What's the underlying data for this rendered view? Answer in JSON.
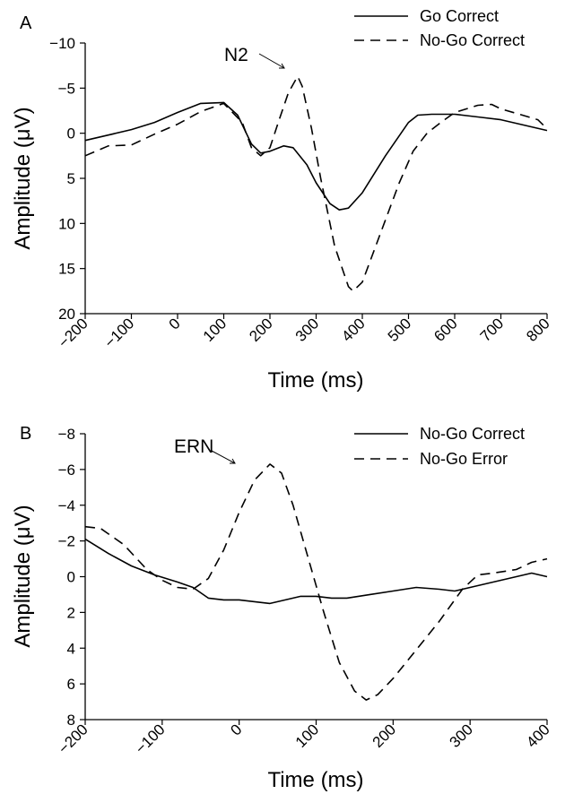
{
  "chart_data": [
    {
      "panel_label": "A",
      "type": "line",
      "xlabel": "Time (ms)",
      "ylabel": "Amplitude (μV)",
      "xlim": [
        -200,
        800
      ],
      "ylim": [
        20,
        -10
      ],
      "y_inverted": true,
      "xticks": [
        -200,
        -100,
        0,
        100,
        200,
        300,
        400,
        500,
        600,
        700,
        800
      ],
      "xtick_labels": [
        "−200",
        "−100",
        "0",
        "100",
        "200",
        "300",
        "400",
        "500",
        "600",
        "700",
        "800"
      ],
      "yticks": [
        -10,
        -5,
        0,
        5,
        10,
        15,
        20
      ],
      "ytick_labels": [
        "−10",
        "−5",
        "0",
        "5",
        "10",
        "15",
        "20"
      ],
      "grid": false,
      "legend_position": "top-right",
      "series": [
        {
          "name": "Go Correct",
          "style": "solid",
          "color": "#000000",
          "points": [
            [
              -200,
              0.8
            ],
            [
              -150,
              0.2
            ],
            [
              -100,
              -0.4
            ],
            [
              -50,
              -1.2
            ],
            [
              0,
              -2.3
            ],
            [
              50,
              -3.3
            ],
            [
              100,
              -3.4
            ],
            [
              130,
              -2.0
            ],
            [
              160,
              1.2
            ],
            [
              180,
              2.2
            ],
            [
              200,
              2.0
            ],
            [
              230,
              1.4
            ],
            [
              250,
              1.6
            ],
            [
              280,
              3.5
            ],
            [
              300,
              5.5
            ],
            [
              330,
              7.8
            ],
            [
              350,
              8.5
            ],
            [
              370,
              8.3
            ],
            [
              400,
              6.6
            ],
            [
              450,
              2.5
            ],
            [
              500,
              -1.2
            ],
            [
              520,
              -2.0
            ],
            [
              550,
              -2.1
            ],
            [
              600,
              -2.1
            ],
            [
              650,
              -1.8
            ],
            [
              700,
              -1.5
            ],
            [
              750,
              -0.9
            ],
            [
              800,
              -0.3
            ]
          ]
        },
        {
          "name": "No-Go Correct",
          "style": "dashed",
          "color": "#000000",
          "points": [
            [
              -200,
              2.5
            ],
            [
              -150,
              1.4
            ],
            [
              -100,
              1.3
            ],
            [
              -50,
              0.1
            ],
            [
              0,
              -1.0
            ],
            [
              50,
              -2.4
            ],
            [
              100,
              -3.3
            ],
            [
              140,
              -1.2
            ],
            [
              160,
              1.6
            ],
            [
              180,
              2.5
            ],
            [
              200,
              1.6
            ],
            [
              220,
              -1.5
            ],
            [
              240,
              -4.5
            ],
            [
              260,
              -6.3
            ],
            [
              270,
              -5.2
            ],
            [
              290,
              -0.5
            ],
            [
              310,
              5.0
            ],
            [
              340,
              12.5
            ],
            [
              370,
              17.0
            ],
            [
              380,
              17.5
            ],
            [
              400,
              16.5
            ],
            [
              440,
              11.0
            ],
            [
              480,
              5.5
            ],
            [
              510,
              2.0
            ],
            [
              540,
              0.0
            ],
            [
              570,
              -1.2
            ],
            [
              600,
              -2.3
            ],
            [
              650,
              -3.1
            ],
            [
              680,
              -3.2
            ],
            [
              700,
              -2.7
            ],
            [
              740,
              -2.1
            ],
            [
              780,
              -1.5
            ],
            [
              800,
              -0.5
            ]
          ]
        }
      ],
      "annotation": {
        "text": "N2",
        "x": 260,
        "y": -6.3
      }
    },
    {
      "panel_label": "B",
      "type": "line",
      "xlabel": "Time (ms)",
      "ylabel": "Amplitude (μV)",
      "xlim": [
        -200,
        400
      ],
      "ylim": [
        8,
        -8
      ],
      "y_inverted": true,
      "xticks": [
        -200,
        -100,
        0,
        100,
        200,
        300,
        400
      ],
      "xtick_labels": [
        "−200",
        "−100",
        "0",
        "100",
        "200",
        "300",
        "400"
      ],
      "yticks": [
        -8,
        -6,
        -4,
        -2,
        0,
        2,
        4,
        6,
        8
      ],
      "ytick_labels": [
        "−8",
        "−6",
        "−4",
        "−2",
        "0",
        "2",
        "4",
        "6",
        "8"
      ],
      "grid": false,
      "legend_position": "top-right",
      "series": [
        {
          "name": "No-Go Correct",
          "style": "solid",
          "color": "#000000",
          "points": [
            [
              -200,
              -2.1
            ],
            [
              -170,
              -1.3
            ],
            [
              -140,
              -0.6
            ],
            [
              -110,
              -0.1
            ],
            [
              -80,
              0.3
            ],
            [
              -60,
              0.6
            ],
            [
              -40,
              1.2
            ],
            [
              -20,
              1.3
            ],
            [
              0,
              1.3
            ],
            [
              20,
              1.4
            ],
            [
              40,
              1.5
            ],
            [
              60,
              1.3
            ],
            [
              80,
              1.1
            ],
            [
              100,
              1.1
            ],
            [
              120,
              1.2
            ],
            [
              140,
              1.2
            ],
            [
              170,
              1.0
            ],
            [
              200,
              0.8
            ],
            [
              230,
              0.6
            ],
            [
              260,
              0.7
            ],
            [
              280,
              0.8
            ],
            [
              300,
              0.6
            ],
            [
              330,
              0.3
            ],
            [
              360,
              0.0
            ],
            [
              380,
              -0.2
            ],
            [
              400,
              0.0
            ]
          ]
        },
        {
          "name": "No-Go Error",
          "style": "dashed",
          "color": "#000000",
          "points": [
            [
              -200,
              -2.8
            ],
            [
              -180,
              -2.7
            ],
            [
              -150,
              -1.8
            ],
            [
              -120,
              -0.4
            ],
            [
              -100,
              0.2
            ],
            [
              -80,
              0.6
            ],
            [
              -60,
              0.7
            ],
            [
              -40,
              0.1
            ],
            [
              -20,
              -1.5
            ],
            [
              0,
              -3.6
            ],
            [
              20,
              -5.4
            ],
            [
              40,
              -6.3
            ],
            [
              55,
              -5.8
            ],
            [
              70,
              -4.0
            ],
            [
              90,
              -1.0
            ],
            [
              110,
              2.0
            ],
            [
              130,
              4.8
            ],
            [
              150,
              6.4
            ],
            [
              165,
              6.9
            ],
            [
              180,
              6.6
            ],
            [
              200,
              5.7
            ],
            [
              230,
              4.1
            ],
            [
              260,
              2.5
            ],
            [
              290,
              0.7
            ],
            [
              310,
              -0.1
            ],
            [
              330,
              -0.2
            ],
            [
              360,
              -0.4
            ],
            [
              380,
              -0.8
            ],
            [
              400,
              -1.0
            ]
          ]
        }
      ],
      "annotation": {
        "text": "ERN",
        "x": 40,
        "y": -6.3
      }
    }
  ]
}
